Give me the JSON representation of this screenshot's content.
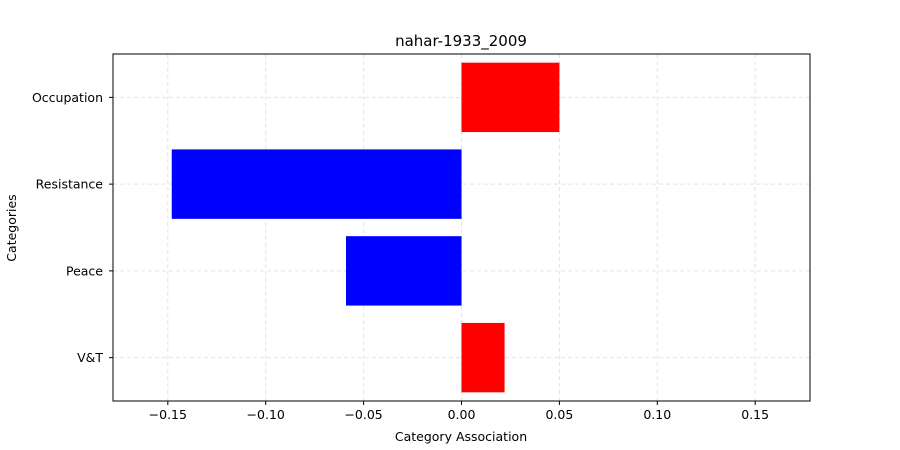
{
  "chart_data": {
    "type": "bar",
    "orientation": "horizontal",
    "title": "nahar-1933_2009",
    "xlabel": "Category Association",
    "ylabel": "Categories",
    "xlim": [
      -0.178,
      0.178
    ],
    "xticks": [
      -0.15,
      -0.1,
      -0.05,
      0.0,
      0.05,
      0.1,
      0.15
    ],
    "xtick_labels": [
      "−0.15",
      "−0.10",
      "−0.05",
      "0.00",
      "0.05",
      "0.10",
      "0.15"
    ],
    "grid": true,
    "categories": [
      "Occupation",
      "Resistance ",
      "Peace",
      "V&T"
    ],
    "values": [
      0.05,
      -0.148,
      -0.059,
      0.022
    ],
    "colors": [
      "#ff0000",
      "#0000ff",
      "#0000ff",
      "#ff0000"
    ]
  }
}
